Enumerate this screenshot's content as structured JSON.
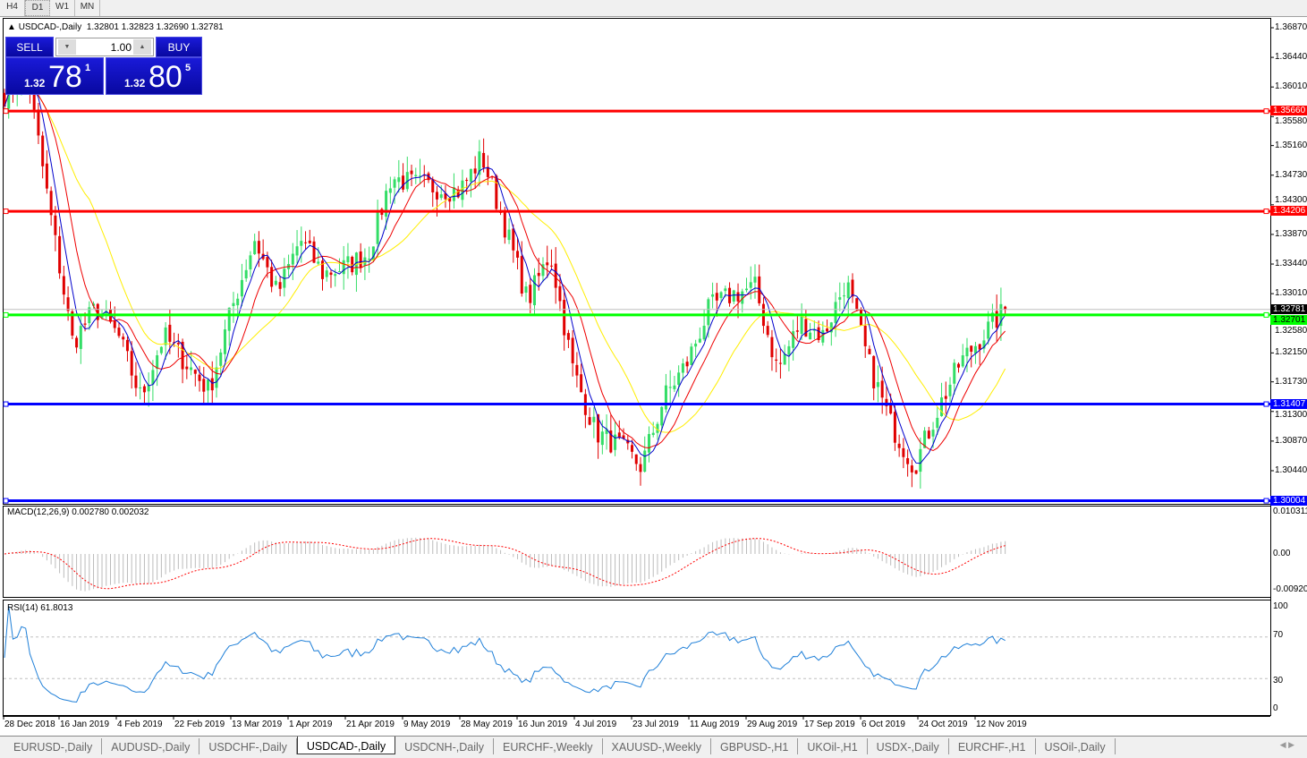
{
  "timeframes": [
    "H4",
    "D1",
    "W1",
    "MN"
  ],
  "active_timeframe": "D1",
  "symbol_line": {
    "symbol": "USDCAD-,Daily",
    "ohlc": "1.32801 1.32823 1.32690 1.32781"
  },
  "trade_panel": {
    "sell_label": "SELL",
    "buy_label": "BUY",
    "lot": "1.00",
    "sell": {
      "prefix": "1.32",
      "big": "78",
      "sup": "1"
    },
    "buy": {
      "prefix": "1.32",
      "big": "80",
      "sup": "5"
    }
  },
  "price_axis": [
    "1.36870",
    "1.36440",
    "1.36010",
    "1.35580",
    "1.35160",
    "1.34730",
    "1.34300",
    "1.33870",
    "1.33440",
    "1.33010",
    "1.32580",
    "1.32150",
    "1.31730",
    "1.31300",
    "1.30870",
    "1.30440"
  ],
  "current_price": "1.32781",
  "levels": [
    {
      "price": "1.35660",
      "color": "#ff0000"
    },
    {
      "price": "1.34206",
      "color": "#ff0000"
    },
    {
      "price": "1.32701",
      "color": "#00ff00"
    },
    {
      "price": "1.31407",
      "color": "#0000ff"
    },
    {
      "price": "1.30004",
      "color": "#0000ff"
    }
  ],
  "macd": {
    "label": "MACD(12,26,9) 0.002780 0.002032",
    "axis": [
      "0.010311",
      "0.00",
      "-0.009203"
    ]
  },
  "rsi": {
    "label": "RSI(14) 61.8013",
    "axis": [
      "100",
      "70",
      "30",
      "0"
    ]
  },
  "time_axis": [
    "28 Dec 2018",
    "16 Jan 2019",
    "4 Feb 2019",
    "22 Feb 2019",
    "13 Mar 2019",
    "1 Apr 2019",
    "21 Apr 2019",
    "9 May 2019",
    "28 May 2019",
    "16 Jun 2019",
    "4 Jul 2019",
    "23 Jul 2019",
    "11 Aug 2019",
    "29 Aug 2019",
    "17 Sep 2019",
    "6 Oct 2019",
    "24 Oct 2019",
    "12 Nov 2019"
  ],
  "tabs": [
    "EURUSD-,Daily",
    "AUDUSD-,Daily",
    "USDCHF-,Daily",
    "USDCAD-,Daily",
    "USDCNH-,Daily",
    "EURCHF-,Weekly",
    "XAUUSD-,Weekly",
    "GBPUSD-,H1",
    "UKOil-,H1",
    "USDX-,Daily",
    "EURCHF-,H1",
    "USOil-,Daily"
  ],
  "active_tab": "USDCAD-,Daily",
  "colors": {
    "bull": "#33dd66",
    "bear": "#e00000",
    "ma_fast": "#0000cc",
    "ma_mid": "#ee0000",
    "ma_slow": "#ffee00",
    "rsi": "#1e7fd8",
    "macd_signal": "#ff0000",
    "macd_hist": "#bbbbbb"
  },
  "chart_data": {
    "type": "candlestick",
    "approx_close_path": [
      1.359,
      1.362,
      1.342,
      1.323,
      1.328,
      1.324,
      1.315,
      1.324,
      1.32,
      1.316,
      1.328,
      1.338,
      1.33,
      1.338,
      1.333,
      1.334,
      1.336,
      1.347,
      1.346,
      1.3455,
      1.345,
      1.35,
      1.34,
      1.329,
      1.336,
      1.319,
      1.31,
      1.308,
      1.305,
      1.315,
      1.32,
      1.328,
      1.33,
      1.331,
      1.319,
      1.326,
      1.324,
      1.332,
      1.32,
      1.311,
      1.305,
      1.313,
      1.32,
      1.324,
      1.3278
    ]
  }
}
